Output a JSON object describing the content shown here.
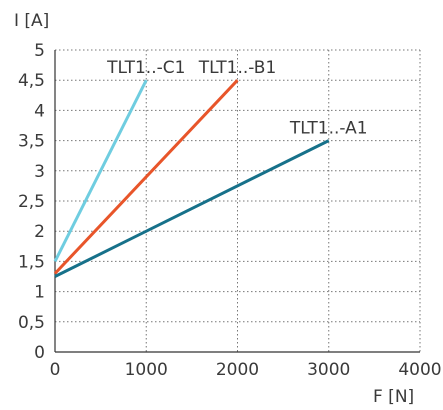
{
  "chart_data": {
    "type": "line",
    "xlabel": "F [N]",
    "ylabel": "I [A]",
    "xlim": [
      0,
      4000
    ],
    "ylim": [
      0,
      5
    ],
    "x_ticks": [
      "0",
      "1000",
      "2000",
      "3000",
      "4000"
    ],
    "y_ticks": [
      "0",
      "0,5",
      "1",
      "1,5",
      "2",
      "2,5",
      "3",
      "3,5",
      "4",
      "4,5",
      "5"
    ],
    "grid": true,
    "grid_style": "dotted",
    "legend": "none",
    "series": [
      {
        "name": "TLT1..-C1",
        "color": "#6fcde0",
        "x": [
          0,
          1000
        ],
        "y": [
          1.5,
          4.5
        ]
      },
      {
        "name": "TLT1..-B1",
        "color": "#e8552a",
        "x": [
          0,
          2000
        ],
        "y": [
          1.3,
          4.5
        ]
      },
      {
        "name": "TLT1..-A1",
        "color": "#17718a",
        "x": [
          0,
          3000
        ],
        "y": [
          1.25,
          3.5
        ]
      }
    ]
  }
}
